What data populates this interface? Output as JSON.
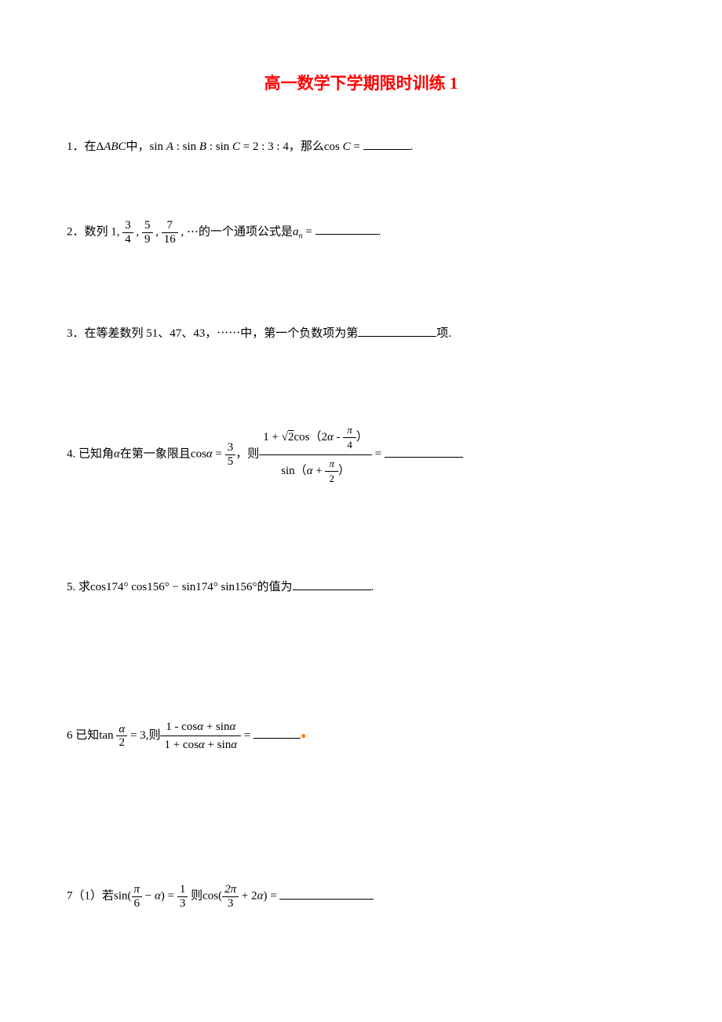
{
  "title": {
    "text": "高一数学下学期限时训练 1",
    "color": "#ff0000",
    "fontsize": 21
  },
  "problems": {
    "p1": {
      "num": "1．",
      "pre": "在",
      "tri": "Δ",
      "abc": "ABC",
      "mid": "中，",
      "sin": "sin ",
      "a": "A",
      "colon1": " : ",
      "b": "B",
      "colon2": " : ",
      "c": "C",
      "eq": " = 2 : 3 : 4",
      "then": "，那么",
      "cos": "cos ",
      "c2": "C",
      "eq2": " = ",
      "period": "."
    },
    "p2": {
      "num": "2．",
      "pre": "数列 1, ",
      "f1n": "3",
      "f1d": "4",
      "c1": " , ",
      "f2n": "5",
      "f2d": "9",
      "c2": " , ",
      "f3n": "7",
      "f3d": "16",
      "c3": " , ",
      "dots": "⋯",
      "post": "的一个通项公式是",
      "an_a": "a",
      "an_n": "n",
      "eq": " = ",
      "period": "."
    },
    "p3": {
      "num": "3．",
      "text": "在等差数列 51、47、43，⋯⋯中，第一个负数项为第",
      "post": "项."
    },
    "p4": {
      "num": "4.  ",
      "pre": "已知角",
      "alpha": "α",
      "mid": "在第一象限且",
      "cos": "cos",
      "alpha2": "α",
      "eq1": " = ",
      "f1n": "3",
      "f1d": "5",
      "then": "，则",
      "num_expr_pre": "1 + ",
      "sqrt2": "2",
      "num_cos": "cos（2",
      "num_alpha": "α",
      "num_minus": " - ",
      "pi1n": "π",
      "pi1d": "4",
      "num_close": "）",
      "den_sin": "sin（",
      "den_alpha": "α",
      "den_plus": " + ",
      "pi2n": "π",
      "pi2d": "2",
      "den_close": "）",
      "eq2": " = "
    },
    "p5": {
      "num": "5. ",
      "pre": "求",
      "cos": "cos",
      "d174": "174°",
      "d156": "156°",
      "minus": " − ",
      "sin": "sin",
      "post": "的值为",
      "period": "."
    },
    "p6": {
      "num": "6 ",
      "pre": "已知",
      "tan": "tan ",
      "fan": "α",
      "fad": "2",
      "eq1": " = 3,",
      "then": "则",
      "num_expr": "1 - cos",
      "alpha": "α",
      "plus": " + sin",
      "den_expr": "1 + cos",
      "eq2": " = "
    },
    "p7": {
      "num": "7（1）",
      "pre": "若",
      "sin": "sin(",
      "pi6n": "π",
      "pi6d": "6",
      "minus": " − ",
      "alpha": "α",
      "close1": ") = ",
      "f1n": "1",
      "f1d": "3",
      "then": "  则",
      "cos": "cos(",
      "pi3n": "2π",
      "pi3d": "3",
      "plus": " + 2",
      "alpha2": "α",
      "close2": ") = "
    }
  }
}
